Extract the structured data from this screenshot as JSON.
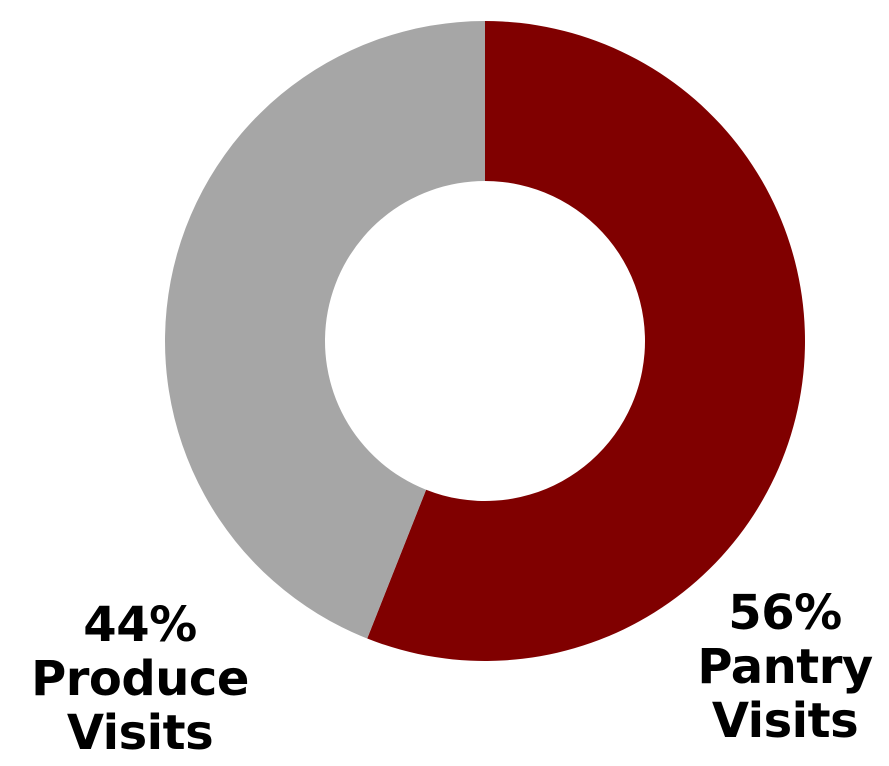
{
  "chart_data": {
    "type": "pie",
    "variant": "donut",
    "start_angle_deg": 0,
    "direction": "clockwise",
    "slices": [
      {
        "label": "Pantry Visits",
        "value": 56,
        "value_text": "56%",
        "name_lines": [
          "Pantry",
          "Visits"
        ],
        "color": "#800000",
        "label_side": "bottom-right"
      },
      {
        "label": "Produce Visits",
        "value": 44,
        "value_text": "44%",
        "name_lines": [
          "Produce",
          "Visits"
        ],
        "color": "#a6a6a6",
        "label_side": "bottom-left"
      }
    ],
    "title": "",
    "legend": "none"
  }
}
